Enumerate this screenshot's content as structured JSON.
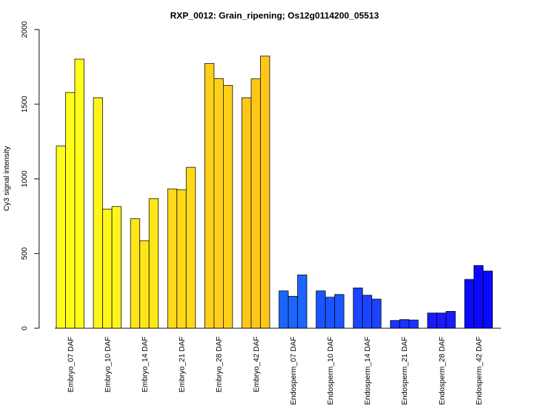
{
  "chart_data": {
    "type": "bar",
    "title": "RXP_0012: Grain_ripening; Os12g0114200_05513",
    "xlabel": "",
    "ylabel": "Cy3 signal intensity",
    "ylim": [
      0,
      2000
    ],
    "yticks": [
      0,
      500,
      1000,
      1500,
      2000
    ],
    "categories": [
      "Embryo_07 DAF",
      "Embryo_10 DAF",
      "Embryo_14 DAF",
      "Embryo_21 DAF",
      "Embryo_28 DAF",
      "Embryo_42 DAF",
      "Endosperm_07 DAF",
      "Endosperm_10 DAF",
      "Endosperm_14 DAF",
      "Endosperm_21 DAF",
      "Endosperm_28 DAF",
      "Endosperm_42 DAF"
    ],
    "colors": [
      "#ffff1a",
      "#fff51a",
      "#ffe61a",
      "#ffda1a",
      "#ffd01a",
      "#ffc61a",
      "#1a66ff",
      "#1a55ff",
      "#1a44ff",
      "#1a33ff",
      "#1a1aff",
      "#0a0aff"
    ],
    "values": [
      [
        1220,
        1578,
        1802
      ],
      [
        1543,
        797,
        815
      ],
      [
        733,
        585,
        868
      ],
      [
        933,
        928,
        1077
      ],
      [
        1773,
        1672,
        1626
      ],
      [
        1543,
        1670,
        1822
      ],
      [
        250,
        214,
        357
      ],
      [
        250,
        208,
        226
      ],
      [
        270,
        221,
        195
      ],
      [
        52,
        58,
        55
      ],
      [
        102,
        102,
        113
      ],
      [
        327,
        420,
        383
      ]
    ],
    "grid": false,
    "legend": "none"
  }
}
